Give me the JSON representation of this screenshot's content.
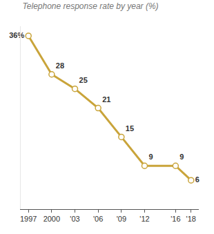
{
  "chart_data": {
    "type": "line",
    "title": "Telephone response rate by year (%)",
    "x": [
      1997,
      2000,
      2003,
      2006,
      2009,
      2012,
      2016,
      2018
    ],
    "values": [
      36,
      28,
      25,
      21,
      15,
      9,
      9,
      6
    ],
    "value_labels": [
      "36%",
      "28",
      "25",
      "21",
      "15",
      "9",
      "9",
      "6"
    ],
    "color": "#c9a43a",
    "marker": "open-circle",
    "data_labels": true,
    "tick_labels": "x",
    "grid": false,
    "xlim": [
      1996,
      2019
    ],
    "xticks": [
      1997,
      2000,
      {
        "value": 2003,
        "label": "'03"
      },
      {
        "value": 2006,
        "label": "'06"
      },
      {
        "value": 2009,
        "label": "'09"
      },
      {
        "value": 2012,
        "label": "'12"
      },
      {
        "value": 2016,
        "label": "'16"
      },
      {
        "value": 2018,
        "label": "'18"
      }
    ],
    "ylim": [
      0,
      38
    ]
  }
}
